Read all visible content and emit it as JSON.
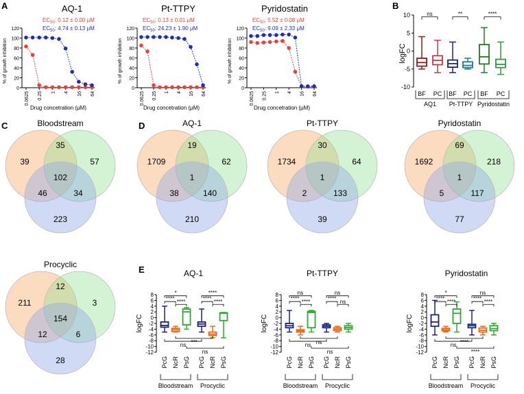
{
  "panels": {
    "A": "A",
    "B": "B",
    "C": "C",
    "D": "D",
    "E": "E"
  },
  "panelA": {
    "y_axis_label": "% of growth inhibition",
    "x_axis_label": "Drug concetration (μM)",
    "x_ticks": [
      "0.0625",
      "0.25",
      "1",
      "4",
      "16",
      "64"
    ],
    "y_ticks": [
      "0",
      "20",
      "40",
      "60",
      "80",
      "100",
      "120"
    ],
    "colors": {
      "pc": "#e8413c",
      "bf": "#1f2fb4"
    },
    "plots": [
      {
        "title": "AQ-1",
        "ec50_label": "EC",
        "ec50_sub": "50",
        "ec_red": ": 0.12 ± 0.00 μM",
        "ec_blue": ": 4.74 ± 0.13 μM"
      },
      {
        "title": "Pt-TTPY",
        "ec50_label": "EC",
        "ec50_sub": "50",
        "ec_red": ": 0.13 ± 0.01 μM",
        "ec_blue": ": 24.23 ± 1.90 μM"
      },
      {
        "title": "Pyridostatin",
        "ec50_label": "EC",
        "ec50_sub": "50",
        "ec_red": ": 5.52 ± 0.08 μM",
        "ec_blue": ": 9.09 ± 2.33 μM"
      }
    ]
  },
  "panelB": {
    "ylabel": "logFC",
    "y_ticks": [
      "10",
      "5",
      "0",
      "-5",
      "-10"
    ],
    "box_labels": [
      "BF",
      "PC",
      "BF",
      "PC",
      "BF",
      "PC"
    ],
    "group_labels": [
      "AQ1",
      "Pt-TTPY",
      "Pyridostatin"
    ],
    "sig": [
      "ns",
      "**",
      "****"
    ]
  },
  "panelC": {
    "venns": [
      {
        "title": "Bloodstream",
        "n1": "39",
        "n12": "35",
        "n2": "57",
        "n123": "102",
        "n13": "46",
        "n23": "34",
        "n3": "223"
      },
      {
        "title": "Procyclic",
        "n1": "211",
        "n12": "12",
        "n2": "3",
        "n123": "154",
        "n13": "12",
        "n23": "6",
        "n3": "28"
      }
    ]
  },
  "panelD": {
    "venns": [
      {
        "title": "AQ-1",
        "n1": "1709",
        "n12": "19",
        "n2": "62",
        "n123": "1",
        "n13": "38",
        "n23": "140",
        "n3": "210"
      },
      {
        "title": "Pt-TTPY",
        "n1": "1734",
        "n12": "30",
        "n2": "64",
        "n123": "1",
        "n13": "2",
        "n23": "133",
        "n3": "39"
      },
      {
        "title": "Pyridostatin",
        "n1": "1692",
        "n12": "69",
        "n2": "218",
        "n123": "1",
        "n13": "5",
        "n23": "117",
        "n3": "77"
      }
    ]
  },
  "panelE": {
    "ylabel": "logFC",
    "y_ticks": [
      "8",
      "6",
      "4",
      "2",
      "0",
      "-2",
      "-4",
      "-6",
      "-8",
      "-10",
      "-12"
    ],
    "box_labels": [
      "PcG",
      "NcR",
      "PsG",
      "PcG",
      "NcR",
      "PsG"
    ],
    "group_labels": [
      "Bloodstream",
      "Procyclic"
    ],
    "plots": [
      {
        "title": "AQ-1",
        "sig_top": [
          "*",
          "****",
          "****",
          "****",
          "****",
          "****"
        ],
        "sig_bottom": [
          "ns",
          "***",
          "ns"
        ]
      },
      {
        "title": "Pt-TTPY",
        "sig_top": [
          "ns",
          "****",
          "****",
          "ns",
          "****",
          "ns"
        ],
        "sig_bottom": [
          "ns",
          "ns",
          "ns"
        ]
      },
      {
        "title": "Pyridostatin",
        "sig_top": [
          "*",
          "****",
          "****",
          "ns",
          "****",
          "****"
        ],
        "sig_bottom": [
          "ns",
          "****",
          "****"
        ]
      }
    ]
  },
  "chart_data": [
    {
      "type": "line",
      "title": "AQ-1",
      "xlabel": "Drug concetration (μM)",
      "ylabel": "% of growth inhibition",
      "xscale": "log2",
      "ylim": [
        0,
        120
      ],
      "x": [
        0.0625,
        0.125,
        0.25,
        0.5,
        1,
        2,
        4,
        8,
        16,
        32,
        64
      ],
      "series": [
        {
          "name": "PC (red)",
          "values": [
            83,
            66,
            5,
            1,
            1,
            1,
            1,
            1,
            1,
            1,
            1
          ]
        },
        {
          "name": "BF (blue)",
          "values": [
            101,
            101,
            101,
            101,
            100,
            98,
            79,
            32,
            12,
            7,
            5
          ]
        }
      ]
    },
    {
      "type": "line",
      "title": "Pt-TTPY",
      "xlabel": "Drug concetration (μM)",
      "ylabel": "% of growth inhibition",
      "xscale": "log2",
      "ylim": [
        0,
        120
      ],
      "x": [
        0.0625,
        0.125,
        0.25,
        0.5,
        1,
        2,
        4,
        8,
        16,
        32,
        64
      ],
      "series": [
        {
          "name": "PC (red)",
          "values": [
            85,
            73,
            5,
            1,
            1,
            1,
            1,
            1,
            1,
            1,
            1
          ]
        },
        {
          "name": "BF (blue)",
          "values": [
            102,
            102,
            102,
            102,
            102,
            101,
            100,
            98,
            82,
            47,
            5
          ]
        }
      ]
    },
    {
      "type": "line",
      "title": "Pyridostatin",
      "xlabel": "Drug concetration (μM)",
      "ylabel": "% of growth inhibition",
      "xscale": "log2",
      "ylim": [
        0,
        120
      ],
      "x": [
        0.0625,
        0.125,
        0.25,
        0.5,
        1,
        2,
        4,
        8,
        16,
        32,
        64
      ],
      "series": [
        {
          "name": "PC (red)",
          "values": [
            92,
            90,
            91,
            92,
            93,
            94,
            80,
            32,
            3,
            2,
            2
          ]
        },
        {
          "name": "BF (blue)",
          "values": [
            104,
            104,
            106,
            106,
            106,
            107,
            107,
            101,
            3,
            3,
            3
          ]
        }
      ]
    },
    {
      "type": "box",
      "title": "",
      "ylabel": "logFC",
      "ylim": [
        -10,
        10
      ],
      "categories": [
        "AQ1 BF",
        "AQ1 PC",
        "Pt-TTPY BF",
        "Pt-TTPY PC",
        "Pyridostatin BF",
        "Pyridostatin PC"
      ],
      "boxes": [
        {
          "min": -5,
          "q1": -4.2,
          "median": -3.2,
          "q3": -2,
          "max": 4
        },
        {
          "min": -6,
          "q1": -3.8,
          "median": -2.6,
          "q3": -1.3,
          "max": 3
        },
        {
          "min": -6,
          "q1": -4.5,
          "median": -3.5,
          "q3": -2.5,
          "max": 2.5
        },
        {
          "min": -5,
          "q1": -4.6,
          "median": -4,
          "q3": -3,
          "max": -2
        },
        {
          "min": -6,
          "q1": -3.6,
          "median": -1.6,
          "q3": 1.8,
          "max": 6.5
        },
        {
          "min": -6.5,
          "q1": -4.6,
          "median": -3.7,
          "q3": -2.3,
          "max": 2.5
        }
      ]
    },
    {
      "type": "box",
      "title": "AQ-1",
      "ylabel": "logFC",
      "ylim": [
        -12,
        8
      ],
      "categories": [
        "Bloodstream PcG",
        "Bloodstream NcR",
        "Bloodstream PsG",
        "Procyclic PcG",
        "Procyclic NcR",
        "Procyclic PsG"
      ],
      "boxes": [
        {
          "min": -5,
          "q1": -3.3,
          "median": -2.7,
          "q3": -1.5,
          "max": 4
        },
        {
          "min": -5,
          "q1": -4.8,
          "median": -4.2,
          "q3": -3.7,
          "max": -3
        },
        {
          "min": -4,
          "q1": -2.5,
          "median": 2,
          "q3": 3,
          "max": 3.5
        },
        {
          "min": -5,
          "q1": -3,
          "median": -2.2,
          "q3": -1.5,
          "max": 3
        },
        {
          "min": -7,
          "q1": -6.2,
          "median": -5.7,
          "q3": -5,
          "max": -3
        },
        {
          "min": -7,
          "q1": -1,
          "median": 1.5,
          "q3": 1.7,
          "max": 1.8
        }
      ]
    },
    {
      "type": "box",
      "title": "Pt-TTPY",
      "ylabel": "logFC",
      "ylim": [
        -12,
        8
      ],
      "categories": [
        "Bloodstream PcG",
        "Bloodstream NcR",
        "Bloodstream PsG",
        "Procyclic PcG",
        "Procyclic NcR",
        "Procyclic PsG"
      ],
      "boxes": [
        {
          "min": -5,
          "q1": -3.5,
          "median": -2.8,
          "q3": -2,
          "max": 2.5
        },
        {
          "min": -6,
          "q1": -5,
          "median": -4.6,
          "q3": -4.2,
          "max": -3
        },
        {
          "min": -5,
          "q1": -3.5,
          "median": 1.8,
          "q3": 2.2,
          "max": 2.5
        },
        {
          "min": -5,
          "q1": -3.5,
          "median": -3,
          "q3": -2.5,
          "max": -2
        },
        {
          "min": -5,
          "q1": -4.5,
          "median": -4,
          "q3": -3.5,
          "max": -3
        },
        {
          "min": -5,
          "q1": -4,
          "median": -3.4,
          "q3": -2.8,
          "max": -2
        }
      ]
    },
    {
      "type": "box",
      "title": "Pyridostatin",
      "ylabel": "logFC",
      "ylim": [
        -12,
        8
      ],
      "categories": [
        "Bloodstream PcG",
        "Bloodstream NcR",
        "Bloodstream PsG",
        "Procyclic PcG",
        "Procyclic NcR",
        "Procyclic PsG"
      ],
      "boxes": [
        {
          "min": -6,
          "q1": -3,
          "median": -1.5,
          "q3": 1,
          "max": 6
        },
        {
          "min": -5,
          "q1": -4.6,
          "median": -4.2,
          "q3": -3.7,
          "max": -3
        },
        {
          "min": -5,
          "q1": -2,
          "median": 1.5,
          "q3": 3,
          "max": 5.5
        },
        {
          "min": -6,
          "q1": -3.5,
          "median": -2.8,
          "q3": -2.3,
          "max": 2.5
        },
        {
          "min": -6,
          "q1": -5,
          "median": -4.4,
          "q3": -3.6,
          "max": -3
        },
        {
          "min": -6,
          "q1": -4.5,
          "median": -3.8,
          "q3": -2.8,
          "max": -2
        }
      ]
    }
  ]
}
